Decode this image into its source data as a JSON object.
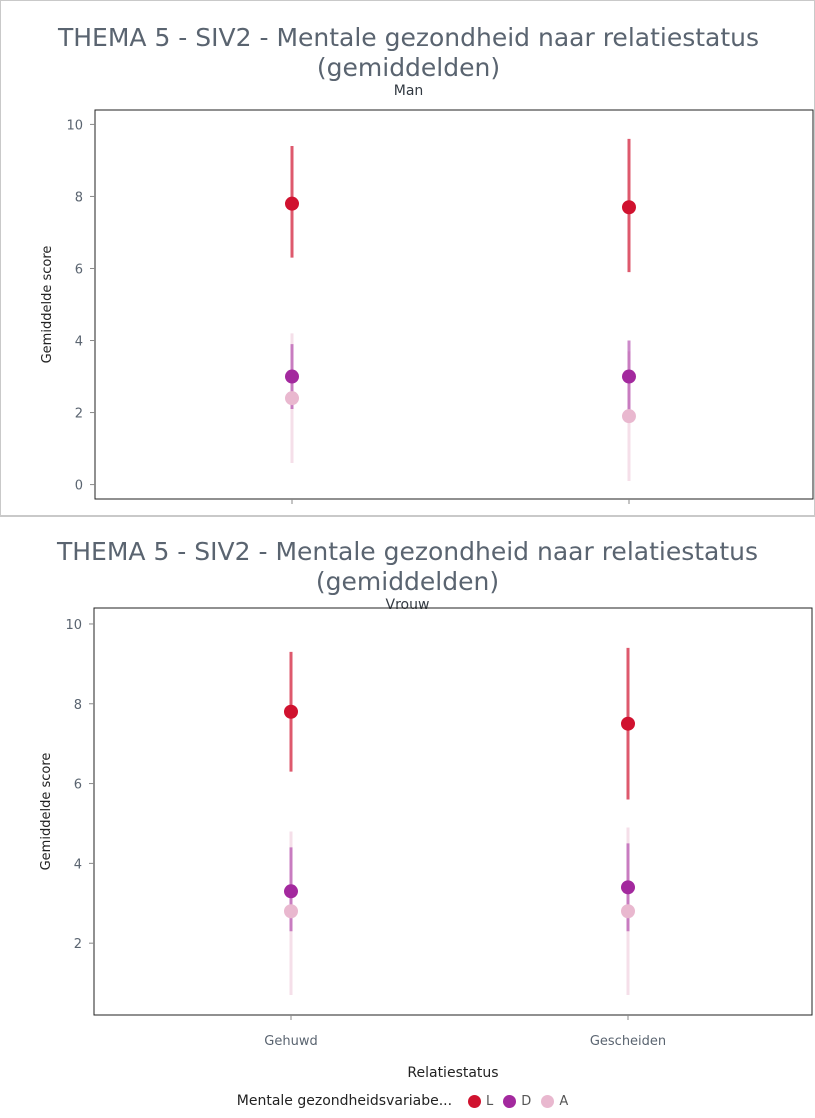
{
  "colors": {
    "L": "#d0122f",
    "D": "#a3299e",
    "A": "#e9b8cf",
    "axis": "#222222",
    "tick": "#5a6470"
  },
  "legend": {
    "title": "Mentale gezondheidsvariabe...",
    "items": [
      {
        "key": "L",
        "label": "L"
      },
      {
        "key": "D",
        "label": "D"
      },
      {
        "key": "A",
        "label": "A"
      }
    ]
  },
  "chart_data": [
    {
      "type": "scatter",
      "title": "THEMA 5 - SIV2 - Mentale gezondheid naar relatiestatus (gemiddelden)",
      "title_line1": "THEMA 5 - SIV2 - Mentale gezondheid naar relatiestatus",
      "title_line2": "(gemiddelden)",
      "subtitle": "Man",
      "ylabel": "Gemiddelde score",
      "xlabel": "",
      "categories": [
        "Gehuwd",
        "Gescheiden"
      ],
      "ylim": [
        -0.4,
        10.4
      ],
      "yticks": [
        0,
        2,
        4,
        6,
        8,
        10
      ],
      "series": [
        {
          "name": "L",
          "values": [
            7.8,
            7.7
          ],
          "low": [
            6.3,
            5.9
          ],
          "high": [
            9.4,
            9.6
          ]
        },
        {
          "name": "D",
          "values": [
            3.0,
            3.0
          ],
          "low": [
            2.1,
            2.0
          ],
          "high": [
            3.9,
            4.0
          ]
        },
        {
          "name": "A",
          "values": [
            2.4,
            1.9
          ],
          "low": [
            0.6,
            0.1
          ],
          "high": [
            4.2,
            3.7
          ]
        }
      ]
    },
    {
      "type": "scatter",
      "title": "THEMA 5 - SIV2 - Mentale gezondheid naar relatiestatus (gemiddelden)",
      "title_line1": "THEMA 5 - SIV2 - Mentale gezondheid naar relatiestatus",
      "title_line2": "(gemiddelden)",
      "subtitle": "Vrouw",
      "ylabel": "Gemiddelde score",
      "xlabel": "Relatiestatus",
      "categories": [
        "Gehuwd",
        "Gescheiden"
      ],
      "ylim": [
        0.2,
        10.4
      ],
      "yticks": [
        2,
        4,
        6,
        8,
        10
      ],
      "series": [
        {
          "name": "L",
          "values": [
            7.8,
            7.5
          ],
          "low": [
            6.3,
            5.6
          ],
          "high": [
            9.3,
            9.4
          ]
        },
        {
          "name": "D",
          "values": [
            3.3,
            3.4
          ],
          "low": [
            2.3,
            2.3
          ],
          "high": [
            4.4,
            4.5
          ]
        },
        {
          "name": "A",
          "values": [
            2.8,
            2.8
          ],
          "low": [
            0.7,
            0.7
          ],
          "high": [
            4.8,
            4.9
          ]
        }
      ]
    }
  ]
}
